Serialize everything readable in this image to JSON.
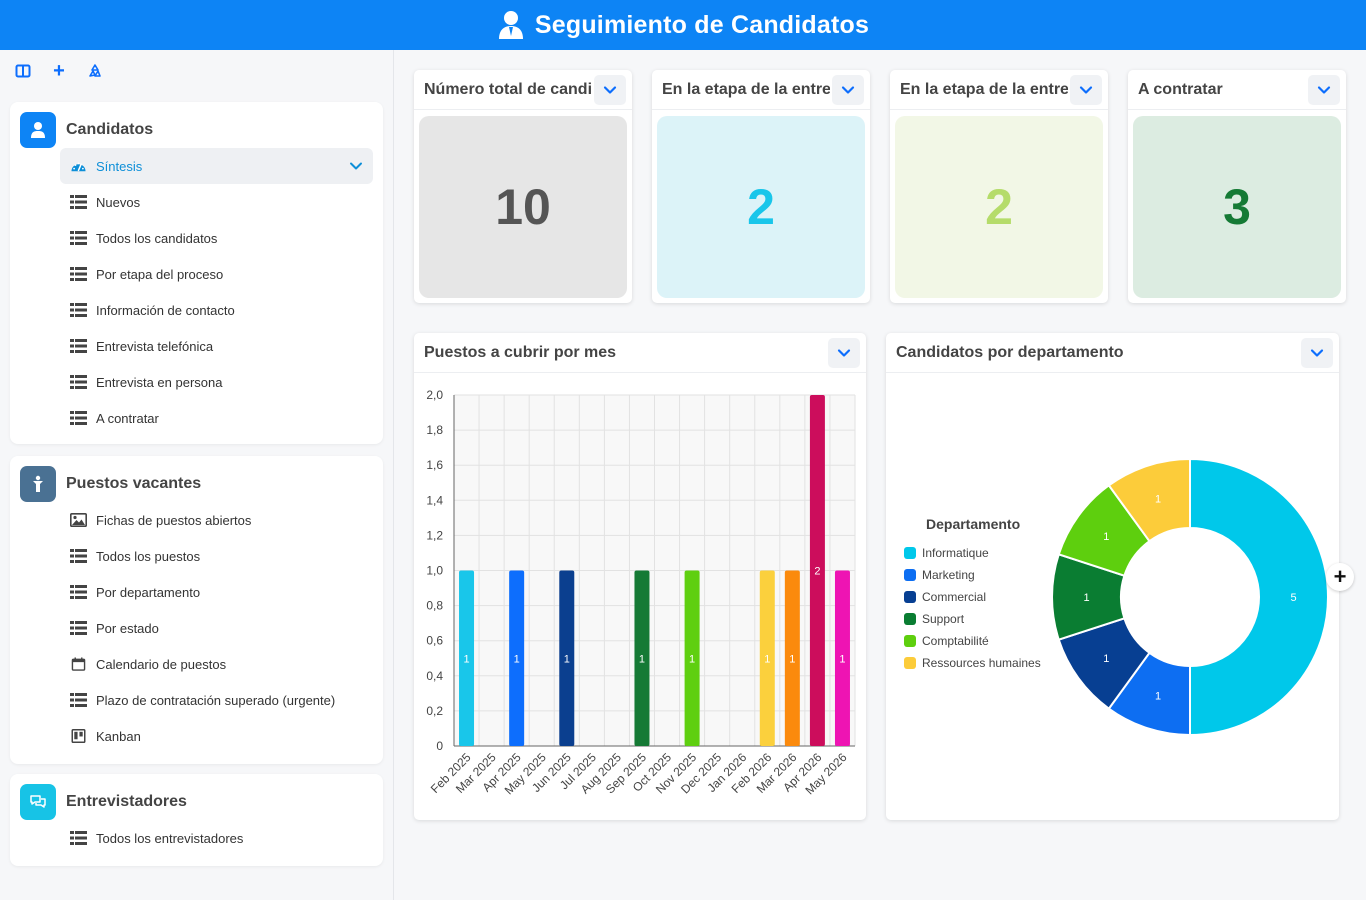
{
  "app": {
    "title": "Seguimiento de Candidatos"
  },
  "toolbar": {
    "layout_icon": "layout-icon",
    "add_label": "+",
    "recycle_icon": "recycle-icon"
  },
  "sidebar": {
    "candidatos": {
      "title": "Candidatos",
      "icon": "user-icon",
      "color": "#0d84f5",
      "items": [
        {
          "label": "Síntesis",
          "icon": "dashboard-icon",
          "active": true
        },
        {
          "label": "Nuevos",
          "icon": "table-icon"
        },
        {
          "label": "Todos los candidatos",
          "icon": "table-icon"
        },
        {
          "label": "Por etapa del proceso",
          "icon": "table-icon"
        },
        {
          "label": "Información de contacto",
          "icon": "table-icon"
        },
        {
          "label": "Entrevista telefónica",
          "icon": "table-icon"
        },
        {
          "label": "Entrevista en persona",
          "icon": "table-icon"
        },
        {
          "label": "A contratar",
          "icon": "table-icon"
        }
      ]
    },
    "puestos": {
      "title": "Puestos vacantes",
      "icon": "person-standing-icon",
      "color": "#4a7193",
      "items": [
        {
          "label": "Fichas de puestos abiertos",
          "icon": "image-icon"
        },
        {
          "label": "Todos los puestos",
          "icon": "table-icon"
        },
        {
          "label": "Por departamento",
          "icon": "table-icon"
        },
        {
          "label": "Por estado",
          "icon": "table-icon"
        },
        {
          "label": "Calendario de puestos",
          "icon": "calendar-icon"
        },
        {
          "label": "Plazo de contratación superado (urgente)",
          "icon": "table-icon"
        },
        {
          "label": "Kanban",
          "icon": "kanban-icon"
        }
      ]
    },
    "entrevistadores": {
      "title": "Entrevistadores",
      "icon": "chat-icon",
      "color": "#17c3e6",
      "items": [
        {
          "label": "Todos los entrevistadores",
          "icon": "table-icon"
        }
      ]
    }
  },
  "kpis": [
    {
      "title": "Número total de candidatos",
      "value": "10",
      "bg": "#e6e6e6",
      "fg": "#555555"
    },
    {
      "title": "En la etapa de la entrevista telefónica",
      "value": "2",
      "bg": "#dcf3f8",
      "fg": "#19c6ea"
    },
    {
      "title": "En la etapa de la entrevista en persona",
      "value": "2",
      "bg": "#f2f7e6",
      "fg": "#b5dc6a"
    },
    {
      "title": "A contratar",
      "value": "3",
      "bg": "#dcece1",
      "fg": "#157a35"
    }
  ],
  "bar_card": {
    "title": "Puestos a cubrir por mes"
  },
  "pie_card": {
    "title": "Candidatos por departamento"
  },
  "chart_data": [
    {
      "type": "bar",
      "title": "Puestos a cubrir por mes",
      "categories": [
        "Feb 2025",
        "Mar 2025",
        "Apr 2025",
        "May 2025",
        "Jun 2025",
        "Jul 2025",
        "Aug 2025",
        "Sep 2025",
        "Oct 2025",
        "Nov 2025",
        "Dec 2025",
        "Jan 2026",
        "Feb 2026",
        "Mar 2026",
        "Apr 2026",
        "May 2026"
      ],
      "bars": [
        {
          "category": "Feb 2025",
          "value": 1,
          "color": "#19c6ea"
        },
        {
          "category": "Apr 2025",
          "value": 1,
          "color": "#0d6efd"
        },
        {
          "category": "Jun 2025",
          "value": 1,
          "color": "#0b3f8f"
        },
        {
          "category": "Sep 2025",
          "value": 1,
          "color": "#157a35"
        },
        {
          "category": "Nov 2025",
          "value": 1,
          "color": "#5fcf10"
        },
        {
          "category": "Feb 2026",
          "value": 1,
          "color": "#fbd03d"
        },
        {
          "category": "Mar 2026",
          "value": 1,
          "color": "#fb8a0d"
        },
        {
          "category": "Apr 2026",
          "value": 2,
          "color": "#cc0d5c"
        },
        {
          "category": "May 2026",
          "value": 1,
          "color": "#ee14b3"
        }
      ],
      "ylim": [
        0,
        2
      ],
      "yticks": [
        "0",
        "0,2",
        "0,4",
        "0,6",
        "0,8",
        "1,0",
        "1,2",
        "1,4",
        "1,6",
        "1,8",
        "2,0"
      ],
      "grid": true
    },
    {
      "type": "pie",
      "title": "Candidatos por departamento",
      "legend_title": "Departamento",
      "legend_position": "left",
      "slices": [
        {
          "label": "Informatique",
          "value": 5,
          "color": "#00c8ea"
        },
        {
          "label": "Marketing",
          "value": 1,
          "color": "#0d6ef2"
        },
        {
          "label": "Commercial",
          "value": 1,
          "color": "#073f92"
        },
        {
          "label": "Support",
          "value": 1,
          "color": "#0a7d32"
        },
        {
          "label": "Comptabilité",
          "value": 1,
          "color": "#5ecf0e"
        },
        {
          "label": "Ressources humaines",
          "value": 1,
          "color": "#fccc3a"
        }
      ]
    }
  ],
  "plus_label": "+"
}
